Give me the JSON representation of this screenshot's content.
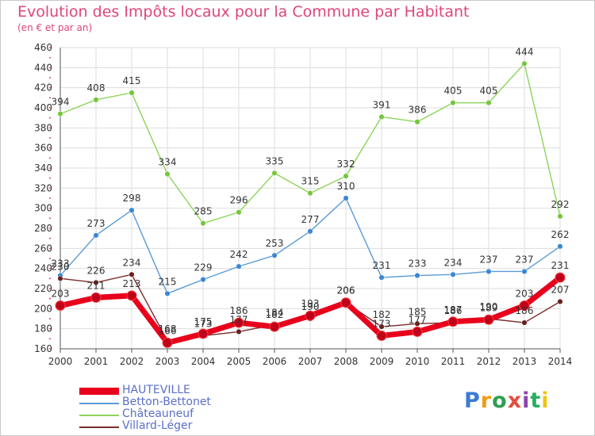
{
  "title": "Evolution des Impôts locaux pour la Commune par Habitant",
  "subtitle": "(en € et par an)",
  "logo": {
    "letters": [
      "P",
      "r",
      "o",
      "x",
      "i",
      "t",
      "i"
    ],
    "colors": [
      "#3a7bd5",
      "#f39c12",
      "#2e9e4f",
      "#e74c3c",
      "#8e44ad",
      "#27ae60",
      "#f1c40f"
    ]
  },
  "chart_data": {
    "type": "line",
    "title": "Evolution des Impôts locaux pour la Commune par Habitant",
    "ylabel": "(en € et par an)",
    "x": [
      "2000",
      "2001",
      "2002",
      "2003",
      "2004",
      "2005",
      "2006",
      "2007",
      "2008",
      "2009",
      "2010",
      "2011",
      "2012",
      "2013",
      "2014"
    ],
    "ylim": [
      160,
      460
    ],
    "yticks": [
      160,
      180,
      200,
      220,
      240,
      260,
      280,
      300,
      320,
      340,
      360,
      380,
      400,
      420,
      440,
      460
    ],
    "series": [
      {
        "name": "HAUTEVILLE",
        "color": "#e8001c",
        "marker": "#c0001a",
        "thick": true,
        "values": [
          203,
          211,
          213,
          166,
          175,
          186,
          182,
          193,
          206,
          173,
          177,
          187,
          189,
          203,
          231
        ],
        "labels": [
          "203",
          "211",
          "213",
          "166",
          "175",
          "186",
          "182",
          "193",
          "206",
          "173",
          "177",
          "187",
          "189",
          "203",
          "231"
        ]
      },
      {
        "name": "Betton-Bettonet",
        "color": "#5b9bd5",
        "marker": "#3a87d4",
        "thick": false,
        "values": [
          233,
          273,
          298,
          215,
          229,
          242,
          253,
          277,
          310,
          231,
          233,
          234,
          237,
          237,
          262
        ],
        "labels": [
          "233",
          "273",
          "298",
          "215",
          "229",
          "242",
          "253",
          "277",
          "310",
          "231",
          "233",
          "234",
          "237",
          "237",
          "262"
        ]
      },
      {
        "name": "Châteauneuf",
        "color": "#8cd45a",
        "marker": "#76c63d",
        "thick": false,
        "values": [
          394,
          408,
          415,
          334,
          285,
          296,
          335,
          315,
          332,
          391,
          386,
          405,
          405,
          444,
          292
        ],
        "labels": [
          "394",
          "408",
          "415",
          "334",
          "285",
          "296",
          "335",
          "315",
          "332",
          "391",
          "386",
          "405",
          "405",
          "444",
          "292"
        ]
      },
      {
        "name": "Villard-Léger",
        "color": "#7b2c2c",
        "marker": "#6a1f1f",
        "thick": false,
        "values": [
          230,
          226,
          234,
          168,
          173,
          177,
          184,
          190,
          206,
          182,
          185,
          186,
          190,
          186,
          207
        ],
        "labels": [
          "230",
          "226",
          "234",
          "168",
          "173",
          "177",
          "184",
          "190",
          "206",
          "182",
          "185",
          "186",
          "190",
          "186",
          "207"
        ]
      }
    ],
    "legend_position": "bottom-left"
  }
}
